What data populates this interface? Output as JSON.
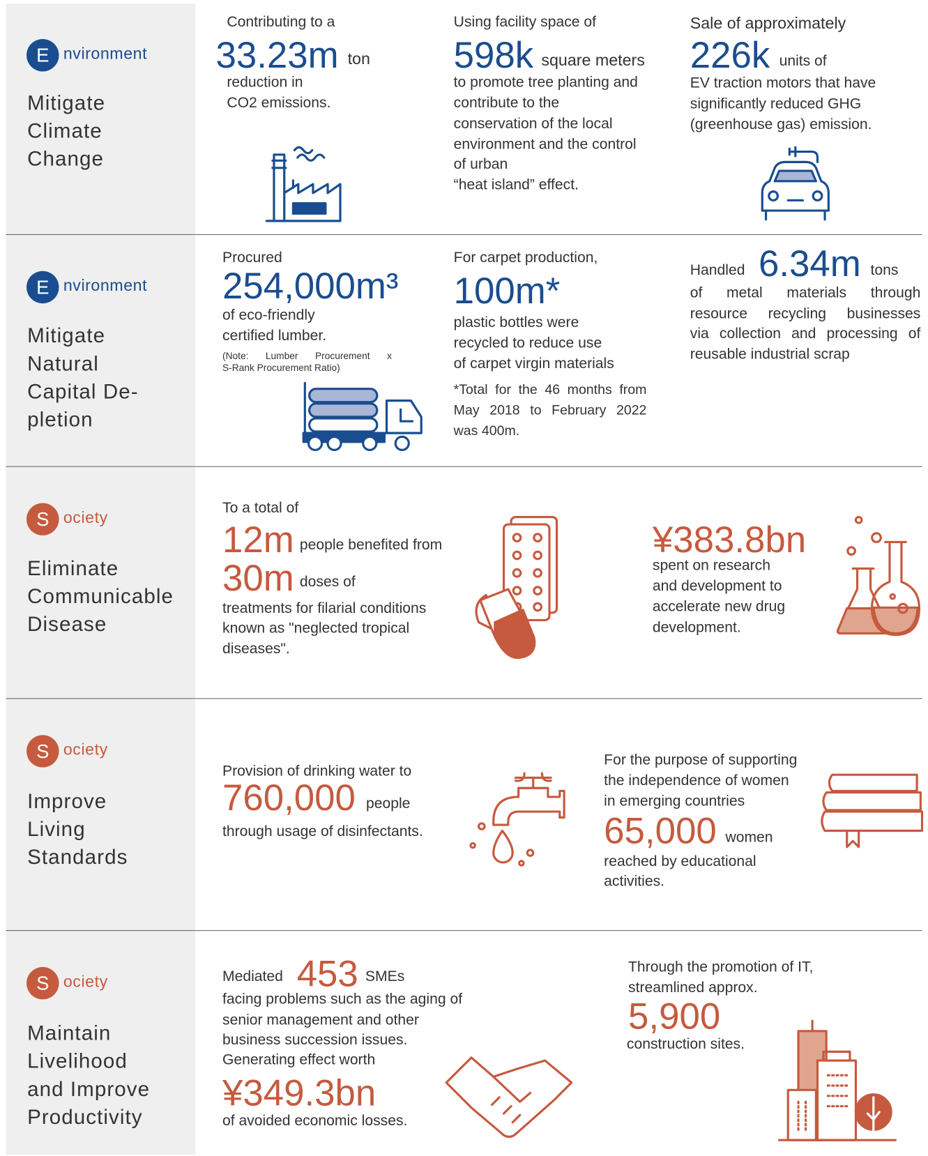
{
  "rows": [
    {
      "badge": "E",
      "badge_rest": "nvironment",
      "title": [
        "Mitigate",
        "Climate",
        "Change"
      ],
      "items": [
        [
          "Contributing to a",
          "33.23m",
          "ton",
          "reduction in",
          "CO2 emissions."
        ],
        [
          "Using facility space of",
          "598k",
          "square meters",
          "to promote tree planting and",
          "contribute to the",
          "conservation of the local",
          "environment and the control",
          "of urban",
          "“heat island” effect."
        ],
        [
          "Sale of approximately",
          "226k",
          "units of",
          "EV traction motors that have",
          "significantly reduced  GHG",
          "(greenhouse gas) emission."
        ]
      ]
    },
    {
      "badge": "E",
      "badge_rest": "nvironment",
      "title": [
        "Mitigate",
        "Natural",
        "Capital De-",
        "pletion"
      ],
      "items": [
        [
          "Procured",
          "254,000m³",
          "of eco-friendly",
          "certified lumber.",
          "(Note: Lumber Procurement x",
          "S-Rank Procurement Ratio)"
        ],
        [
          "For carpet production,",
          "100m*",
          "plastic bottles were",
          "recycled to reduce use",
          "of carpet virgin materials",
          "*Total for the 46 months from",
          "May 2018 to February 2022",
          "was 400m."
        ],
        [
          "Handled",
          "6.34m",
          "tons",
          "of metal materials through",
          "resource recycling businesses",
          "via collection and processing of",
          "reusable industrial scrap"
        ]
      ]
    },
    {
      "badge": "S",
      "badge_rest": "ociety",
      "title": [
        "Eliminate",
        "Communicable",
        "Disease"
      ],
      "items": [
        [
          "To a total of",
          "12m",
          "people benefited from",
          "30m",
          "doses of",
          "treatments for filarial conditions",
          "known as \"neglected tropical",
          "diseases\"."
        ],
        [
          "¥383.8bn",
          "spent on research",
          "and development to",
          "accelerate new drug",
          "development."
        ]
      ]
    },
    {
      "badge": "S",
      "badge_rest": "ociety",
      "title": [
        "Improve",
        "Living",
        "Standards"
      ],
      "items": [
        [
          "Provision of drinking water to",
          "760,000",
          "people",
          "through usage of disinfectants."
        ],
        [
          "For the purpose of supporting",
          "the independence of women",
          "in emerging countries",
          "65,000",
          "women",
          "reached by educational",
          "activities."
        ]
      ]
    },
    {
      "badge": "S",
      "badge_rest": "ociety",
      "title": [
        "Maintain",
        "Livelihood",
        "and Improve",
        "Productivity"
      ],
      "items": [
        [
          "Mediated",
          "453",
          "SMEs",
          "facing problems such as the aging of",
          "senior management and other",
          "business succession issues.",
          "Generating effect worth",
          "¥349.3bn",
          "of avoided economic losses."
        ],
        [
          "Through the promotion of IT,",
          "streamlined approx.",
          "5,900",
          "construction sites."
        ]
      ]
    }
  ]
}
